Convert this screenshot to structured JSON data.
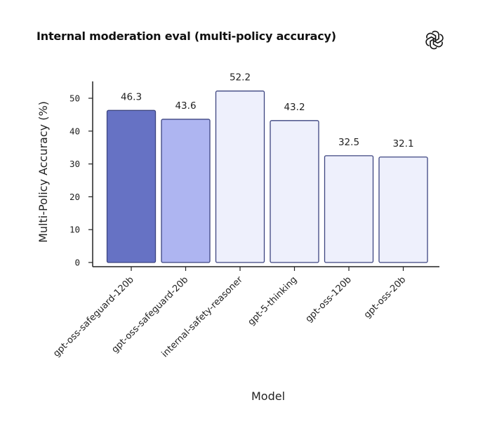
{
  "brand": {
    "icon": "openai-logo-icon"
  },
  "chart_data": {
    "type": "bar",
    "title": "Internal moderation eval (multi-policy accuracy)",
    "xlabel": "Model",
    "ylabel": "Multi-Policy Accuracy (%)",
    "categories": [
      "gpt-oss-safeguard-120b",
      "gpt-oss-safeguard-20b",
      "internal-safety-reasoner",
      "gpt-5-thinking",
      "gpt-oss-120b",
      "gpt-oss-20b"
    ],
    "values": [
      46.3,
      43.6,
      52.2,
      43.2,
      32.5,
      32.1
    ],
    "value_labels": [
      "46.3",
      "43.6",
      "52.2",
      "43.2",
      "32.5",
      "32.1"
    ],
    "bar_colors": [
      "#6672c4",
      "#aeb5f1",
      "#eef0fc",
      "#eef0fc",
      "#eef0fc",
      "#eef0fc"
    ],
    "bar_stroke": "#3d4580",
    "yticks": [
      0,
      10,
      20,
      30,
      40,
      50
    ],
    "ylim": [
      0,
      55
    ],
    "grid": false,
    "legend": "none"
  }
}
